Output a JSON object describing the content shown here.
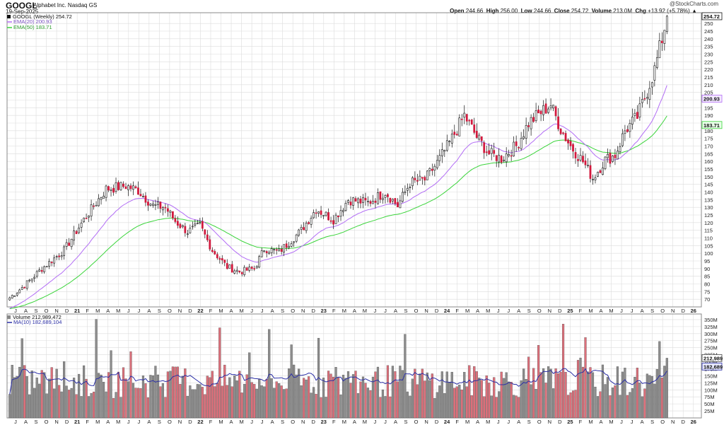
{
  "header": {
    "ticker": "GOOGL",
    "company": "Alphabet Inc.  Nasdaq GS",
    "date": "19-Sep-2025",
    "credit": "@StockCharts.com",
    "open_label": "Open",
    "open": "244.66",
    "high_label": "High",
    "high": "256.00",
    "low_label": "Low",
    "low": "244.66",
    "close_label": "Close",
    "close": "254.72",
    "volume_label": "Volume",
    "volume": "213.0M",
    "chg_label": "Chg",
    "chg": "+13.92 (+5.78%)"
  },
  "legend": {
    "main": "GOOGL (Weekly) 254.72",
    "ema20": "EMA(20) 200.93",
    "ema50": "EMA(50) 183.71",
    "volume": "Volume 212,989,472",
    "ma10": "MA(10) 182,689,104"
  },
  "colors": {
    "up": "#ffffff",
    "down": "#d2183c",
    "wick": "#111111",
    "ema20": "#b26cf5",
    "ema50": "#3ad43a",
    "ma10": "#2b2fa6",
    "vol_up": "#8c8c8c",
    "vol_down": "#dc6f7a",
    "grid": "#dcdcdc"
  },
  "chart_data": [
    {
      "type": "candlestick",
      "title": "GOOGL (Weekly) 254.72",
      "ylim": [
        65,
        257
      ],
      "y_ticks": [
        70,
        75,
        80,
        85,
        90,
        95,
        100,
        105,
        110,
        115,
        120,
        125,
        130,
        135,
        140,
        145,
        150,
        155,
        160,
        165,
        170,
        175,
        180,
        185,
        190,
        195,
        200,
        205,
        210,
        215,
        220,
        225,
        230,
        235,
        240,
        245,
        250
      ],
      "x_labels": [
        "J",
        "A",
        "S",
        "O",
        "N",
        "D",
        "21",
        "F",
        "M",
        "A",
        "M",
        "J",
        "J",
        "A",
        "S",
        "O",
        "N",
        "D",
        "22",
        "F",
        "M",
        "A",
        "M",
        "J",
        "J",
        "A",
        "S",
        "O",
        "N",
        "D",
        "23",
        "F",
        "M",
        "A",
        "M",
        "J",
        "J",
        "A",
        "S",
        "O",
        "N",
        "D",
        "24",
        "F",
        "M",
        "A",
        "M",
        "J",
        "J",
        "A",
        "S",
        "O",
        "N",
        "D",
        "25",
        "F",
        "M",
        "A",
        "M",
        "J",
        "J",
        "A",
        "S",
        "O",
        "N",
        "D",
        "26"
      ],
      "anchors": [
        [
          0,
          71
        ],
        [
          6,
          79
        ],
        [
          13,
          90
        ],
        [
          22,
          102
        ],
        [
          30,
          122
        ],
        [
          39,
          142
        ],
        [
          47,
          144
        ],
        [
          52,
          141
        ],
        [
          58,
          131
        ],
        [
          63,
          130
        ],
        [
          67,
          121
        ],
        [
          72,
          114
        ],
        [
          77,
          118
        ],
        [
          82,
          102
        ],
        [
          88,
          91
        ],
        [
          93,
          88
        ],
        [
          99,
          90
        ],
        [
          103,
          103
        ],
        [
          109,
          101
        ],
        [
          113,
          107
        ],
        [
          118,
          115
        ],
        [
          124,
          129
        ],
        [
          131,
          122
        ],
        [
          137,
          135
        ],
        [
          145,
          133
        ],
        [
          152,
          140
        ],
        [
          157,
          131
        ],
        [
          162,
          146
        ],
        [
          168,
          148
        ],
        [
          173,
          159
        ],
        [
          178,
          172
        ],
        [
          184,
          190
        ],
        [
          189,
          176
        ],
        [
          194,
          165
        ],
        [
          199,
          162
        ],
        [
          205,
          170
        ],
        [
          210,
          185
        ],
        [
          215,
          192
        ],
        [
          219,
          197
        ],
        [
          223,
          181
        ],
        [
          227,
          170
        ],
        [
          232,
          160
        ],
        [
          236,
          149
        ],
        [
          241,
          161
        ],
        [
          245,
          164
        ],
        [
          249,
          180
        ],
        [
          254,
          189
        ],
        [
          258,
          206
        ],
        [
          261,
          220
        ],
        [
          264,
          240
        ],
        [
          266,
          254.72
        ]
      ],
      "last_close": 254.72,
      "ema20_last": 200.93,
      "ema50_last": 183.71,
      "series": [
        {
          "name": "EMA(20) 200.93",
          "value": 200.93
        },
        {
          "name": "EMA(50) 183.71",
          "value": 183.71
        }
      ]
    },
    {
      "type": "bar",
      "title": "Volume 212,989,472",
      "ylim": [
        0,
        370
      ],
      "y_ticks": [
        "25M",
        "50M",
        "75M",
        "100M",
        "125M",
        "150M",
        "175M",
        "200M",
        "225M",
        "250M",
        "275M",
        "300M",
        "325M",
        "350M"
      ],
      "ma10_last": "182,689,104",
      "last_volume": "212,989,472"
    }
  ]
}
